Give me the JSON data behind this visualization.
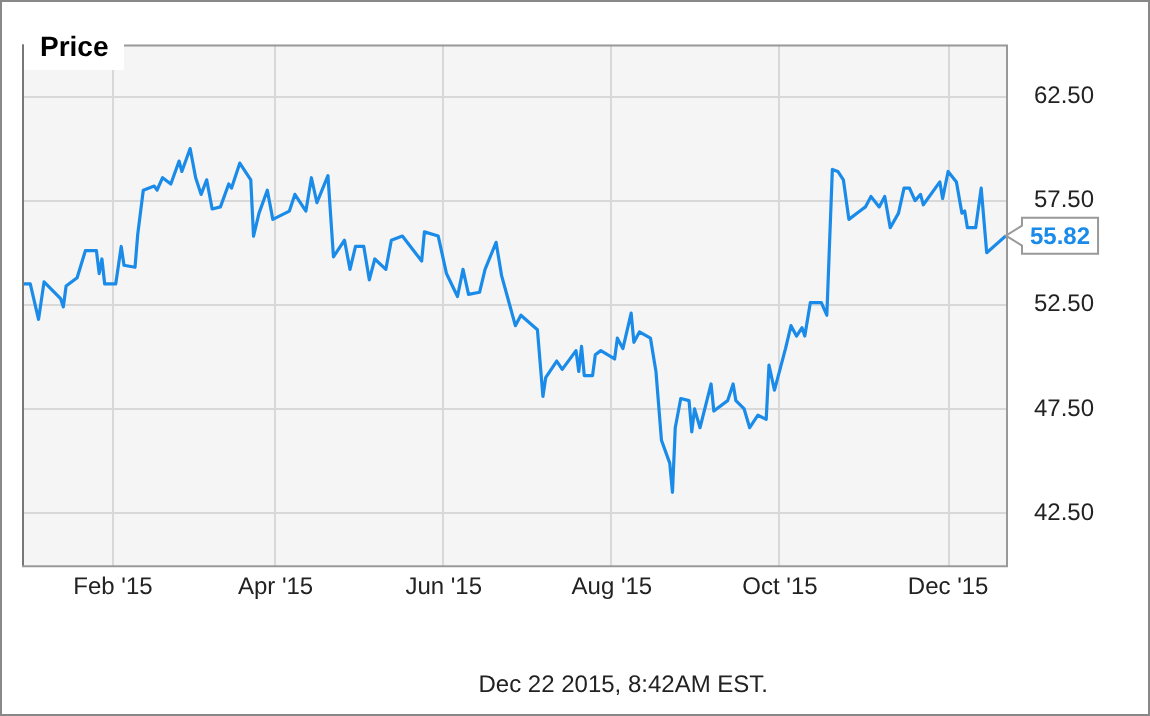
{
  "chart_data": {
    "type": "line",
    "title": "Price",
    "x": [
      "2014-12-30",
      "2015-01-02",
      "2015-01-05",
      "2015-01-07",
      "2015-01-13",
      "2015-01-14",
      "2015-01-15",
      "2015-01-19",
      "2015-01-22",
      "2015-01-26",
      "2015-01-27",
      "2015-01-28",
      "2015-01-29",
      "2015-02-02",
      "2015-02-04",
      "2015-02-05",
      "2015-02-09",
      "2015-02-10",
      "2015-02-12",
      "2015-02-16",
      "2015-02-17",
      "2015-02-19",
      "2015-02-22",
      "2015-02-25",
      "2015-02-26",
      "2015-03-01",
      "2015-03-03",
      "2015-03-05",
      "2015-03-07",
      "2015-03-09",
      "2015-03-12",
      "2015-03-15",
      "2015-03-16",
      "2015-03-19",
      "2015-03-23",
      "2015-03-24",
      "2015-03-26",
      "2015-03-29",
      "2015-03-31",
      "2015-04-06",
      "2015-04-08",
      "2015-04-12",
      "2015-04-14",
      "2015-04-16",
      "2015-04-20",
      "2015-04-22",
      "2015-04-26",
      "2015-04-28",
      "2015-04-30",
      "2015-05-03",
      "2015-05-05",
      "2015-05-07",
      "2015-05-11",
      "2015-05-13",
      "2015-05-17",
      "2015-05-24",
      "2015-05-25",
      "2015-05-30",
      "2015-06-02",
      "2015-06-06",
      "2015-06-08",
      "2015-06-10",
      "2015-06-14",
      "2015-06-16",
      "2015-06-20",
      "2015-06-22",
      "2015-06-27",
      "2015-06-29",
      "2015-07-05",
      "2015-07-07",
      "2015-07-08",
      "2015-07-12",
      "2015-07-14",
      "2015-07-19",
      "2015-07-20",
      "2015-07-21",
      "2015-07-22",
      "2015-07-25",
      "2015-07-26",
      "2015-07-28",
      "2015-08-02",
      "2015-08-03",
      "2015-08-05",
      "2015-08-08",
      "2015-08-09",
      "2015-08-11",
      "2015-08-15",
      "2015-08-17",
      "2015-08-19",
      "2015-08-22",
      "2015-08-23",
      "2015-08-24",
      "2015-08-26",
      "2015-08-29",
      "2015-08-30",
      "2015-08-31",
      "2015-09-02",
      "2015-09-06",
      "2015-09-07",
      "2015-09-12",
      "2015-09-14",
      "2015-09-15",
      "2015-09-18",
      "2015-09-20",
      "2015-09-23",
      "2015-09-26",
      "2015-09-27",
      "2015-09-29",
      "2015-10-03",
      "2015-10-05",
      "2015-10-07",
      "2015-10-09",
      "2015-10-10",
      "2015-10-12",
      "2015-10-16",
      "2015-10-18",
      "2015-10-20",
      "2015-10-22",
      "2015-10-24",
      "2015-10-26",
      "2015-10-30",
      "2015-11-01",
      "2015-11-03",
      "2015-11-06",
      "2015-11-08",
      "2015-11-10",
      "2015-11-13",
      "2015-11-15",
      "2015-11-17",
      "2015-11-19",
      "2015-11-21",
      "2015-11-22",
      "2015-11-28",
      "2015-11-29",
      "2015-12-01",
      "2015-12-04",
      "2015-12-06",
      "2015-12-07",
      "2015-12-08",
      "2015-12-11",
      "2015-12-13",
      "2015-12-15",
      "2015-12-22"
    ],
    "series": [
      {
        "color": "#1a8be8",
        "values": [
          53.5,
          53.5,
          51.8,
          53.6,
          52.8,
          52.4,
          53.4,
          53.8,
          55.1,
          55.1,
          54.0,
          54.7,
          53.5,
          53.5,
          55.3,
          54.4,
          54.3,
          55.9,
          58.0,
          58.2,
          58.0,
          58.6,
          58.3,
          59.4,
          58.9,
          60.0,
          58.6,
          57.8,
          58.5,
          57.1,
          57.2,
          58.3,
          58.1,
          59.3,
          58.5,
          55.8,
          56.9,
          58.0,
          56.6,
          57.0,
          57.8,
          57.0,
          58.6,
          57.4,
          58.7,
          54.8,
          55.6,
          54.2,
          55.3,
          55.3,
          53.7,
          54.7,
          54.2,
          55.6,
          55.8,
          54.6,
          56.0,
          55.8,
          54.0,
          52.9,
          54.2,
          53.0,
          53.1,
          54.2,
          55.5,
          53.9,
          51.5,
          52.0,
          51.3,
          48.1,
          49.0,
          49.8,
          49.4,
          50.3,
          49.3,
          50.5,
          49.1,
          49.1,
          50.1,
          50.3,
          49.9,
          50.9,
          50.4,
          52.1,
          50.7,
          51.2,
          50.9,
          49.3,
          46.0,
          44.9,
          43.5,
          46.6,
          48.0,
          47.9,
          46.4,
          47.5,
          46.6,
          48.7,
          47.4,
          47.9,
          48.7,
          47.9,
          47.5,
          46.6,
          47.2,
          47.0,
          49.6,
          48.4,
          50.4,
          51.5,
          51.0,
          51.4,
          51.0,
          52.6,
          52.6,
          52.0,
          59.0,
          58.9,
          58.5,
          56.6,
          57.0,
          57.2,
          57.7,
          57.2,
          57.7,
          56.2,
          56.9,
          58.1,
          58.1,
          57.5,
          57.8,
          57.3,
          58.4,
          57.6,
          58.9,
          58.4,
          56.9,
          57.0,
          56.2,
          56.2,
          58.1,
          55.0,
          55.82
        ]
      }
    ],
    "xlim": [
      "2014-12-30",
      "2015-12-22"
    ],
    "xticks": [
      {
        "value": "2015-02-01",
        "label": "Feb '15"
      },
      {
        "value": "2015-04-01",
        "label": "Apr '15"
      },
      {
        "value": "2015-06-01",
        "label": "Jun '15"
      },
      {
        "value": "2015-08-01",
        "label": "Aug '15"
      },
      {
        "value": "2015-10-01",
        "label": "Oct '15"
      },
      {
        "value": "2015-12-01",
        "label": "Dec '15"
      }
    ],
    "ylim": [
      40,
      65
    ],
    "yticks": [
      {
        "value": 42.5,
        "label": "42.50"
      },
      {
        "value": 47.5,
        "label": "47.50"
      },
      {
        "value": 52.5,
        "label": "52.50"
      },
      {
        "value": 57.5,
        "label": "57.50"
      },
      {
        "value": 62.5,
        "label": "62.50"
      }
    ],
    "grid": true,
    "marker": "none",
    "line_style": "solid",
    "annotations": [
      {
        "text": "55.82",
        "x": "2015-12-22",
        "y": 55.82
      },
      "Dec 22 2015, 8:42AM EST."
    ]
  }
}
